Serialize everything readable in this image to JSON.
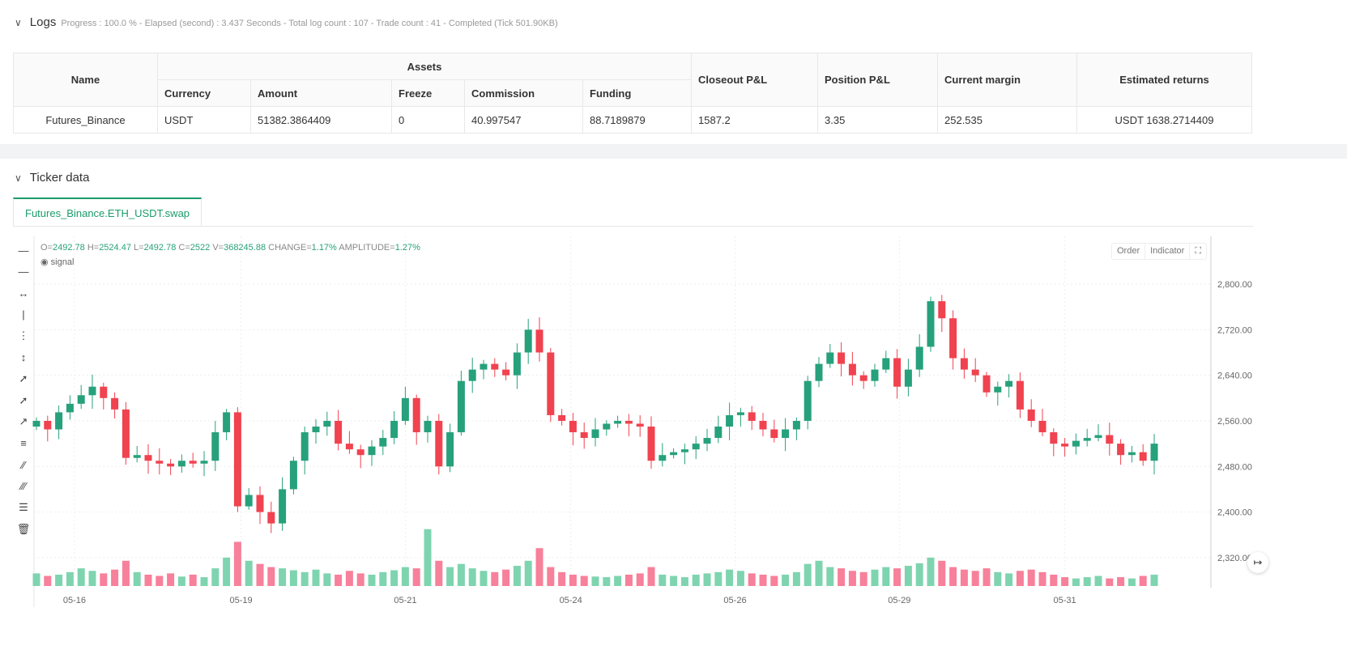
{
  "logs": {
    "title": "Logs",
    "info": "Progress : 100.0 % - Elapsed (second) : 3.437  Seconds - Total log count : 107 - Trade count : 41 - Completed (Tick 501.90KB)",
    "headers": {
      "name": "Name",
      "assets": "Assets",
      "currency": "Currency",
      "amount": "Amount",
      "freeze": "Freeze",
      "commission": "Commission",
      "funding": "Funding",
      "closeout": "Closeout P&L",
      "position": "Position P&L",
      "margin": "Current margin",
      "returns": "Estimated returns"
    },
    "row": {
      "name": "Futures_Binance",
      "currency": "USDT",
      "amount": "51382.3864409",
      "freeze": "0",
      "commission": "40.997547",
      "funding": "88.7189879",
      "closeout": "1587.2",
      "position": "3.35",
      "margin": "252.535",
      "returns": "USDT 1638.2714409"
    }
  },
  "ticker": {
    "title": "Ticker data",
    "tab": "Futures_Binance.ETH_USDT.swap",
    "ohlc": {
      "o_label": "O=",
      "o": "2492.78",
      "h_label": "H=",
      "h": "2524.47",
      "l_label": "L=",
      "l": "2492.78",
      "c_label": "C=",
      "c": "2522",
      "v_label": "V=",
      "v": "368245.88",
      "chg_label": "CHANGE=",
      "chg": "1.17%",
      "amp_label": "AMPLITUDE=",
      "amp": "1.27%"
    },
    "signal": "signal",
    "order": "Order",
    "indicator": "Indicator"
  },
  "colors": {
    "up": "#26a17b",
    "down": "#f0424f",
    "vol_up": "#7fd4b0",
    "vol_down": "#f7809a"
  },
  "chart_data": {
    "type": "candlestick",
    "yticks": [
      2320,
      2400,
      2480,
      2560,
      2640,
      2720,
      2800
    ],
    "ylim": [
      2300,
      2820
    ],
    "xticks": [
      {
        "label": "05-16",
        "i": 3.4
      },
      {
        "label": "05-19",
        "i": 18.3
      },
      {
        "label": "05-21",
        "i": 33
      },
      {
        "label": "05-24",
        "i": 47.8
      },
      {
        "label": "05-26",
        "i": 62.5
      },
      {
        "label": "05-29",
        "i": 77.2
      },
      {
        "label": "05-31",
        "i": 92
      }
    ],
    "closes": [
      2560,
      2545,
      2575,
      2590,
      2605,
      2620,
      2600,
      2580,
      2495,
      2500,
      2490,
      2485,
      2480,
      2490,
      2485,
      2490,
      2540,
      2575,
      2410,
      2430,
      2400,
      2380,
      2440,
      2490,
      2540,
      2550,
      2560,
      2520,
      2510,
      2500,
      2515,
      2530,
      2560,
      2600,
      2540,
      2560,
      2480,
      2540,
      2630,
      2650,
      2660,
      2650,
      2640,
      2680,
      2720,
      2680,
      2570,
      2560,
      2540,
      2530,
      2545,
      2555,
      2560,
      2555,
      2550,
      2490,
      2500,
      2505,
      2510,
      2520,
      2530,
      2550,
      2570,
      2575,
      2560,
      2545,
      2530,
      2545,
      2560,
      2630,
      2660,
      2680,
      2660,
      2640,
      2630,
      2650,
      2670,
      2620,
      2650,
      2690,
      2770,
      2740,
      2670,
      2650,
      2640,
      2610,
      2620,
      2630,
      2580,
      2560,
      2540,
      2520,
      2515,
      2525,
      2530,
      2535,
      2520,
      2500,
      2505,
      2490,
      2520
    ],
    "volumes": [
      20,
      16,
      18,
      22,
      28,
      24,
      20,
      26,
      40,
      22,
      18,
      16,
      20,
      15,
      18,
      14,
      28,
      45,
      70,
      40,
      35,
      30,
      28,
      25,
      22,
      26,
      20,
      18,
      24,
      20,
      18,
      22,
      25,
      30,
      28,
      90,
      40,
      30,
      35,
      28,
      24,
      22,
      26,
      32,
      40,
      60,
      30,
      22,
      18,
      16,
      15,
      14,
      16,
      18,
      20,
      30,
      18,
      16,
      14,
      18,
      20,
      22,
      26,
      24,
      20,
      18,
      16,
      18,
      22,
      35,
      40,
      30,
      28,
      24,
      22,
      26,
      30,
      28,
      32,
      36,
      45,
      40,
      30,
      26,
      24,
      28,
      22,
      20,
      24,
      26,
      22,
      18,
      14,
      12,
      14,
      16,
      12,
      14,
      12,
      16,
      18
    ]
  }
}
